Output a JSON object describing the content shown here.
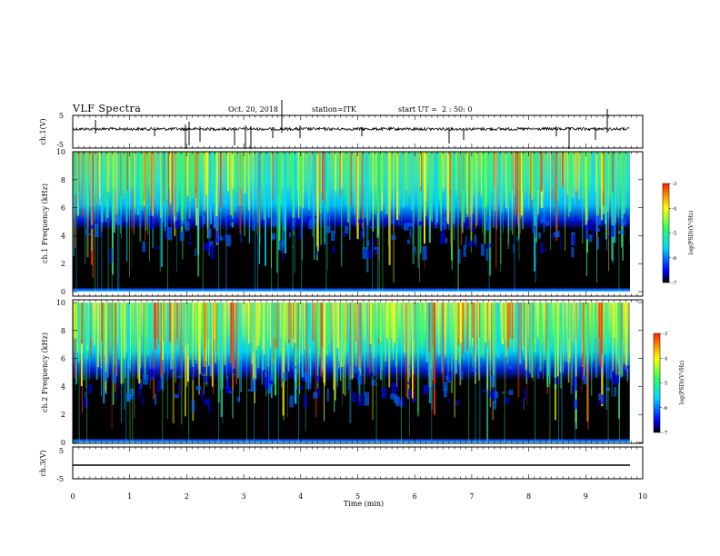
{
  "header": {
    "title": "VLF Spectra",
    "date": "Oct. 20, 2018",
    "station": "station=ITK",
    "start_ut": "start UT =  2 : 50: 0"
  },
  "colors": {
    "spectrum_low": "#000000",
    "spectrum_blue": "#0000ff",
    "spectrum_cyan": "#00d8ff",
    "spectrum_green": "#30ff60",
    "spectrum_yellow": "#ffff00",
    "spectrum_red": "#ff2000"
  },
  "chart_data": [
    {
      "type": "line",
      "name": "ch1-waveform",
      "ylabel": "ch.1(V)",
      "ylim": [
        -5,
        5
      ],
      "yticks": [
        "5",
        "-5"
      ],
      "xlim": [
        0,
        10
      ]
    },
    {
      "type": "heatmap",
      "name": "ch1-spectrogram",
      "ylabel": "ch.1 Frequency (kHz)",
      "ylim": [
        0,
        10
      ],
      "yticks": [
        "0",
        "2",
        "4",
        "6",
        "8",
        "10"
      ],
      "xlim": [
        0,
        10
      ],
      "colorbar": {
        "label": "log(PSD)(V²/Hz)",
        "range": [
          -7,
          -3
        ],
        "ticks": [
          "-3",
          "-4",
          "-5",
          "-6",
          "-7"
        ]
      }
    },
    {
      "type": "heatmap",
      "name": "ch2-spectrogram",
      "ylabel": "ch.2 Frequency (kHz)",
      "ylim": [
        0,
        10
      ],
      "yticks": [
        "0",
        "2",
        "4",
        "6",
        "8",
        "10"
      ],
      "xlim": [
        0,
        10
      ],
      "colorbar": {
        "label": "log(PSD)(V²/Hz)",
        "range": [
          -7,
          -3
        ],
        "ticks": [
          "-3",
          "-4",
          "-5",
          "-6",
          "-7"
        ]
      }
    },
    {
      "type": "line",
      "name": "ch3-waveform",
      "ylabel": "ch.3(V)",
      "ylim": [
        -5,
        5
      ],
      "yticks": [
        "5",
        "-5"
      ],
      "xlim": [
        0,
        10
      ]
    }
  ],
  "xaxis": {
    "label": "Time (min)",
    "ticks": [
      "0",
      "1",
      "2",
      "3",
      "4",
      "5",
      "6",
      "7",
      "8",
      "9",
      "10"
    ]
  }
}
